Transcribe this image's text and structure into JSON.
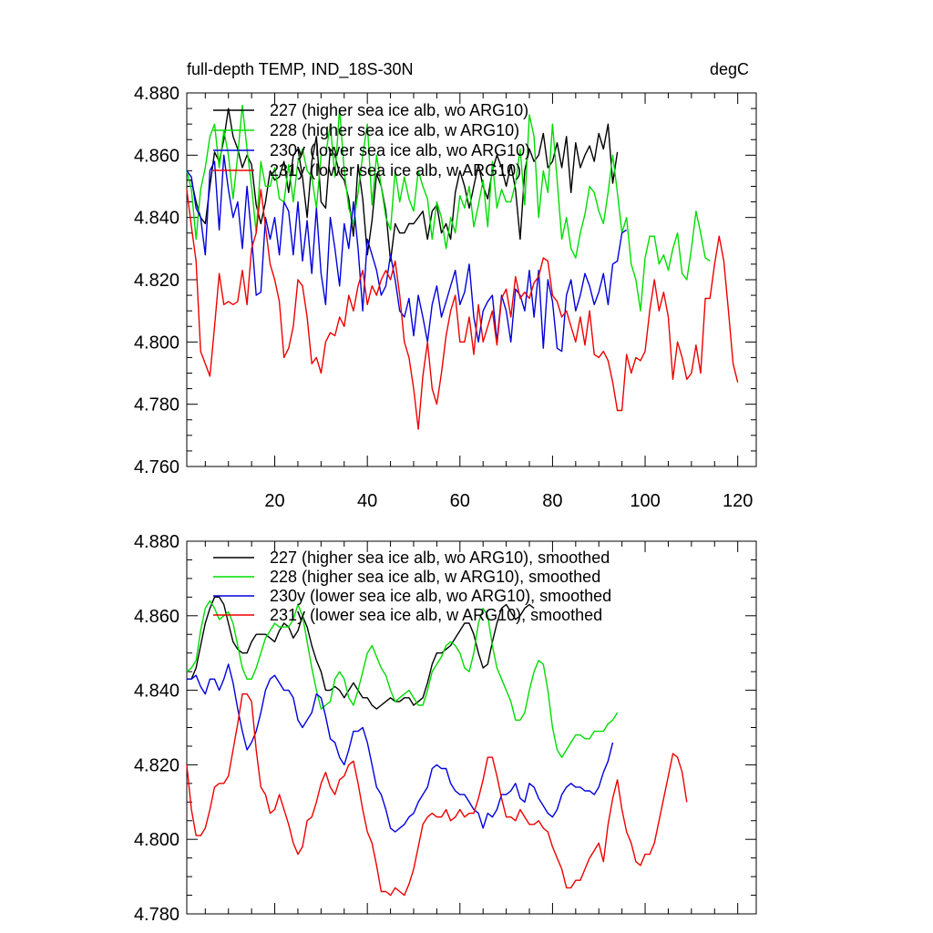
{
  "header": {
    "left_title": "full-depth TEMP, IND_18S-30N",
    "right_title": "degC"
  },
  "colors": {
    "227": "#000000",
    "228": "#00dd00",
    "230y": "#0000dd",
    "231y": "#ee0000"
  },
  "chart_data": [
    {
      "type": "line",
      "xlim": [
        1,
        124
      ],
      "ylim": [
        4.76,
        4.88
      ],
      "yticks": [
        "4.760",
        "4.780",
        "4.800",
        "4.820",
        "4.840",
        "4.860",
        "4.880"
      ],
      "xticks": [
        "20",
        "40",
        "60",
        "80",
        "100",
        "120"
      ],
      "grid": false,
      "legend_position": "top-left",
      "series": [
        {
          "name": "227 (higher sea ice alb, wo ARG10)",
          "color": "#000000",
          "values": [
            4.852,
            4.852,
            4.845,
            4.84,
            4.838,
            4.85,
            4.861,
            4.858,
            4.865,
            4.875,
            4.866,
            4.862,
            4.856,
            4.86,
            4.857,
            4.844,
            4.838,
            4.845,
            4.855,
            4.852,
            4.853,
            4.858,
            4.848,
            4.86,
            4.862,
            4.853,
            4.84,
            4.858,
            4.866,
            4.845,
            4.843,
            4.862,
            4.86,
            4.854,
            4.852,
            4.846,
            4.834,
            4.857,
            4.846,
            4.828,
            4.839,
            4.854,
            4.85,
            4.842,
            4.826,
            4.838,
            4.835,
            4.835,
            4.838,
            4.838,
            4.84,
            4.842,
            4.833,
            4.842,
            4.844,
            4.835,
            4.838,
            4.833,
            4.848,
            4.855,
            4.85,
            4.843,
            4.85,
            4.857,
            4.85,
            4.846,
            4.855,
            4.86,
            4.856,
            4.85,
            4.857,
            4.849,
            4.833,
            4.855,
            4.862,
            4.858,
            4.86,
            4.867,
            4.856,
            4.858,
            4.864,
            4.856,
            4.866,
            4.848,
            4.864,
            4.856,
            4.86,
            4.863,
            4.858,
            4.867,
            4.862,
            4.87,
            4.851,
            4.861
          ]
        },
        {
          "name": "228 (higher sea ice alb, w ARG10)",
          "color": "#00dd00",
          "values": [
            4.855,
            4.849,
            4.833,
            4.849,
            4.856,
            4.866,
            4.87,
            4.856,
            4.868,
            4.86,
            4.846,
            4.86,
            4.876,
            4.862,
            4.85,
            4.835,
            4.858,
            4.85,
            4.85,
            4.856,
            4.846,
            4.845,
            4.857,
            4.845,
            4.858,
            4.862,
            4.855,
            4.853,
            4.843,
            4.86,
            4.86,
            4.87,
            4.853,
            4.875,
            4.855,
            4.843,
            4.838,
            4.848,
            4.86,
            4.87,
            4.844,
            4.86,
            4.85,
            4.84,
            4.836,
            4.855,
            4.845,
            4.853,
            4.846,
            4.842,
            4.855,
            4.85,
            4.846,
            4.833,
            4.845,
            4.84,
            4.83,
            4.84,
            4.835,
            4.847,
            4.843,
            4.85,
            4.837,
            4.844,
            4.852,
            4.837,
            4.858,
            4.843,
            4.849,
            4.845,
            4.845,
            4.851,
            4.862,
            4.844,
            4.873,
            4.866,
            4.84,
            4.855,
            4.848,
            4.87,
            4.852,
            4.833,
            4.84,
            4.83,
            4.827,
            4.835,
            4.841,
            4.85,
            4.848,
            4.842,
            4.838,
            4.848,
            4.86,
            4.848,
            4.835,
            4.84,
            4.825,
            4.82,
            4.81,
            4.827,
            4.834,
            4.834,
            4.825,
            4.828,
            4.823,
            4.83,
            4.835,
            4.822,
            4.82,
            4.83,
            4.842,
            4.835,
            4.827,
            4.826
          ]
        },
        {
          "name": "230y (lower sea ice alb, wo ARG10)",
          "color": "#0000dd",
          "values": [
            4.855,
            4.853,
            4.843,
            4.84,
            4.828,
            4.855,
            4.858,
            4.836,
            4.86,
            4.849,
            4.84,
            4.845,
            4.83,
            4.85,
            4.834,
            4.815,
            4.816,
            4.84,
            4.833,
            4.84,
            4.828,
            4.845,
            4.842,
            4.828,
            4.845,
            4.826,
            4.839,
            4.822,
            4.843,
            4.822,
            4.812,
            4.84,
            4.83,
            4.818,
            4.838,
            4.83,
            4.845,
            4.83,
            4.81,
            4.833,
            4.828,
            4.823,
            4.815,
            4.818,
            4.828,
            4.82,
            4.81,
            4.808,
            4.814,
            4.802,
            4.815,
            4.808,
            4.8,
            4.812,
            4.818,
            4.808,
            4.813,
            4.818,
            4.823,
            4.812,
            4.816,
            4.825,
            4.808,
            4.8,
            4.81,
            4.813,
            4.815,
            4.8,
            4.815,
            4.81,
            4.8,
            4.817,
            4.815,
            4.81,
            4.823,
            4.808,
            4.823,
            4.798,
            4.82,
            4.813,
            4.798,
            4.797,
            4.815,
            4.82,
            4.81,
            4.815,
            4.822,
            4.818,
            4.812,
            4.816,
            4.822,
            4.812,
            4.825,
            4.826,
            4.835,
            4.836
          ]
        },
        {
          "name": "231y (lower sea ice alb, w ARG10)",
          "color": "#ee0000",
          "values": [
            4.849,
            4.837,
            4.826,
            4.797,
            4.793,
            4.789,
            4.805,
            4.822,
            4.812,
            4.813,
            4.812,
            4.813,
            4.823,
            4.812,
            4.83,
            4.835,
            4.849,
            4.837,
            4.825,
            4.82,
            4.813,
            4.795,
            4.798,
            4.805,
            4.82,
            4.818,
            4.808,
            4.793,
            4.795,
            4.79,
            4.8,
            4.803,
            4.802,
            4.808,
            4.805,
            4.815,
            4.81,
            4.818,
            4.823,
            4.812,
            4.818,
            4.815,
            4.82,
            4.823,
            4.82,
            4.826,
            4.815,
            4.8,
            4.795,
            4.785,
            4.772,
            4.789,
            4.8,
            4.785,
            4.78,
            4.79,
            4.802,
            4.81,
            4.815,
            4.8,
            4.8,
            4.808,
            4.796,
            4.812,
            4.8,
            4.805,
            4.81,
            4.799,
            4.814,
            4.817,
            4.808,
            4.821,
            4.814,
            4.816,
            4.814,
            4.819,
            4.821,
            4.827,
            4.826,
            4.815,
            4.813,
            4.808,
            4.81,
            4.805,
            4.8,
            4.808,
            4.799,
            4.81,
            4.796,
            4.795,
            4.797,
            4.794,
            4.787,
            4.778,
            4.778,
            4.796,
            4.79,
            4.795,
            4.794,
            4.797,
            4.81,
            4.82,
            4.81,
            4.816,
            4.808,
            4.788,
            4.8,
            4.795,
            4.788,
            4.79,
            4.799,
            4.79,
            4.814,
            4.814,
            4.825,
            4.834,
            4.826,
            4.81,
            4.793,
            4.787
          ]
        }
      ]
    },
    {
      "type": "line",
      "xlim": [
        1,
        124
      ],
      "ylim": [
        4.78,
        4.88
      ],
      "yticks": [
        "4.780",
        "4.800",
        "4.820",
        "4.840",
        "4.860",
        "4.880"
      ],
      "xticks": [
        "20",
        "40",
        "60",
        "80",
        "100",
        "120"
      ],
      "grid": false,
      "legend_position": "top-left",
      "series": [
        {
          "name": "227 (higher sea ice alb, wo ARG10), smoothed",
          "color": "#000000",
          "values": [
            4.843,
            4.843,
            4.846,
            4.852,
            4.858,
            4.862,
            4.865,
            4.865,
            4.863,
            4.858,
            4.853,
            4.851,
            4.85,
            4.85,
            4.853,
            4.855,
            4.855,
            4.855,
            4.854,
            4.853,
            4.856,
            4.858,
            4.857,
            4.854,
            4.856,
            4.86,
            4.857,
            4.852,
            4.848,
            4.845,
            4.84,
            4.84,
            4.841,
            4.84,
            4.838,
            4.84,
            4.842,
            4.84,
            4.838,
            4.838,
            4.836,
            4.835,
            4.836,
            4.837,
            4.838,
            4.837,
            4.837,
            4.838,
            4.838,
            4.836,
            4.837,
            4.838,
            4.842,
            4.847,
            4.85,
            4.85,
            4.851,
            4.852,
            4.854,
            4.856,
            4.858,
            4.858,
            4.855,
            4.85,
            4.846,
            4.847,
            4.853,
            4.858,
            4.862,
            4.863,
            4.861,
            4.859,
            4.86,
            4.862,
            4.863,
            4.862
          ]
        },
        {
          "name": "228 (higher sea ice alb, w ARG10), smoothed",
          "color": "#00dd00",
          "values": [
            4.845,
            4.846,
            4.848,
            4.856,
            4.862,
            4.864,
            4.862,
            4.859,
            4.86,
            4.861,
            4.858,
            4.852,
            4.846,
            4.843,
            4.843,
            4.846,
            4.85,
            4.854,
            4.856,
            4.858,
            4.857,
            4.857,
            4.857,
            4.859,
            4.863,
            4.86,
            4.853,
            4.846,
            4.84,
            4.835,
            4.836,
            4.837,
            4.843,
            4.845,
            4.843,
            4.838,
            4.836,
            4.84,
            4.845,
            4.85,
            4.852,
            4.849,
            4.846,
            4.844,
            4.84,
            4.837,
            4.838,
            4.839,
            4.84,
            4.838,
            4.836,
            4.836,
            4.84,
            4.845,
            4.847,
            4.849,
            4.852,
            4.853,
            4.852,
            4.85,
            4.846,
            4.845,
            4.85,
            4.858,
            4.862,
            4.86,
            4.852,
            4.846,
            4.843,
            4.84,
            4.837,
            4.832,
            4.832,
            4.834,
            4.84,
            4.845,
            4.848,
            4.847,
            4.84,
            4.83,
            4.824,
            4.822,
            4.824,
            4.826,
            4.828,
            4.828,
            4.827,
            4.827,
            4.829,
            4.829,
            4.829,
            4.831,
            4.832,
            4.834
          ]
        },
        {
          "name": "230y (lower sea ice alb, wo ARG10), smoothed",
          "color": "#0000dd",
          "values": [
            4.843,
            4.843,
            4.844,
            4.841,
            4.839,
            4.843,
            4.843,
            4.84,
            4.843,
            4.847,
            4.842,
            4.835,
            4.829,
            4.824,
            4.826,
            4.829,
            4.834,
            4.84,
            4.843,
            4.844,
            4.842,
            4.84,
            4.84,
            4.838,
            4.832,
            4.83,
            4.832,
            4.834,
            4.839,
            4.838,
            4.833,
            4.827,
            4.826,
            4.822,
            4.82,
            4.824,
            4.829,
            4.829,
            4.83,
            4.826,
            4.82,
            4.814,
            4.812,
            4.808,
            4.803,
            4.802,
            4.803,
            4.804,
            4.806,
            4.807,
            4.81,
            4.812,
            4.814,
            4.819,
            4.82,
            4.819,
            4.819,
            4.815,
            4.813,
            4.812,
            4.812,
            4.81,
            4.808,
            4.807,
            4.803,
            4.807,
            4.806,
            4.808,
            4.812,
            4.812,
            4.813,
            4.815,
            4.811,
            4.81,
            4.815,
            4.814,
            4.811,
            4.809,
            4.807,
            4.806,
            4.808,
            4.812,
            4.814,
            4.815,
            4.814,
            4.814,
            4.813,
            4.813,
            4.812,
            4.814,
            4.818,
            4.821,
            4.826
          ]
        },
        {
          "name": "231y (lower sea ice alb, w ARG10), smoothed",
          "color": "#ee0000",
          "values": [
            4.82,
            4.808,
            4.801,
            4.801,
            4.803,
            4.808,
            4.814,
            4.815,
            4.815,
            4.817,
            4.824,
            4.831,
            4.839,
            4.839,
            4.837,
            4.824,
            4.814,
            4.812,
            4.807,
            4.808,
            4.812,
            4.808,
            4.804,
            4.799,
            4.796,
            4.798,
            4.805,
            4.806,
            4.81,
            4.815,
            4.818,
            4.814,
            4.812,
            4.816,
            4.817,
            4.82,
            4.821,
            4.815,
            4.808,
            4.802,
            4.799,
            4.793,
            4.786,
            4.786,
            4.785,
            4.787,
            4.786,
            4.785,
            4.788,
            4.792,
            4.798,
            4.804,
            4.806,
            4.807,
            4.806,
            4.806,
            4.808,
            4.805,
            4.806,
            4.808,
            4.806,
            4.807,
            4.807,
            4.811,
            4.816,
            4.822,
            4.822,
            4.817,
            4.811,
            4.806,
            4.806,
            4.805,
            4.808,
            4.806,
            4.804,
            4.804,
            4.805,
            4.803,
            4.802,
            4.798,
            4.795,
            4.792,
            4.787,
            4.787,
            4.789,
            4.789,
            4.792,
            4.795,
            4.797,
            4.799,
            4.794,
            4.804,
            4.811,
            4.816,
            4.808,
            4.802,
            4.799,
            4.794,
            4.793,
            4.796,
            4.796,
            4.799,
            4.805,
            4.811,
            4.817,
            4.823,
            4.822,
            4.818,
            4.81
          ]
        }
      ]
    }
  ]
}
